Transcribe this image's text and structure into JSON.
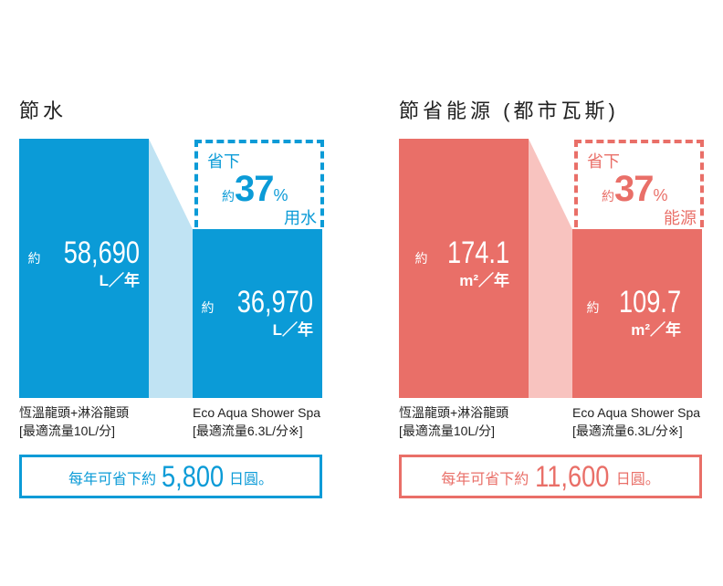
{
  "colors": {
    "water": "#0b9bd7",
    "water_light": "#c0e3f3",
    "gas": "#e96f68",
    "gas_light": "#f8c3bf"
  },
  "panels": [
    {
      "title": "節水",
      "before": {
        "prefix": "約",
        "value": "58,690",
        "unit": "L／年"
      },
      "after": {
        "prefix": "約",
        "value": "36,970",
        "unit": "L／年"
      },
      "saving": {
        "line1": "省下",
        "prefix": "約",
        "value": "37",
        "pct": "%",
        "suffix": "用水"
      },
      "label_before": [
        "恆溫龍頭+淋浴龍頭",
        "[最適流量10L/分]"
      ],
      "label_after": [
        "Eco Aqua Shower Spa",
        "[最適流量6.3L/分※]"
      ],
      "yearly": {
        "pre": "每年可省下約",
        "value": "5,800",
        "post": "日圓。"
      }
    },
    {
      "title": "節省能源 (都市瓦斯)",
      "before": {
        "prefix": "約",
        "value": "174.1",
        "unit": "m²／年"
      },
      "after": {
        "prefix": "約",
        "value": "109.7",
        "unit": "m²／年"
      },
      "saving": {
        "line1": "省下",
        "prefix": "約",
        "value": "37",
        "pct": "%",
        "suffix": "能源"
      },
      "label_before": [
        "恆溫龍頭+淋浴龍頭",
        "[最適流量10L/分]"
      ],
      "label_after": [
        "Eco Aqua Shower Spa",
        "[最適流量6.3L/分※]"
      ],
      "yearly": {
        "pre": "每年可省下約",
        "value": "11,600",
        "post": "日圓。"
      }
    }
  ]
}
